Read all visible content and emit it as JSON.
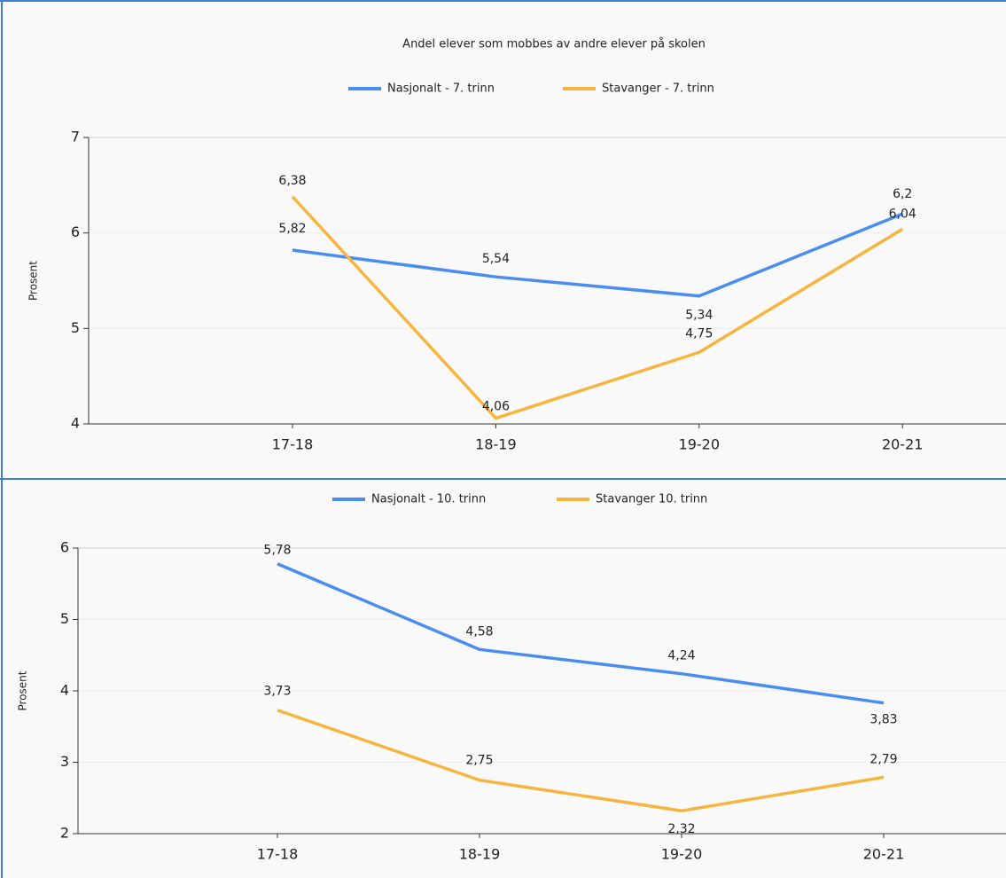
{
  "chart_data": [
    {
      "type": "line",
      "title": "Andel elever som mobbes av andre elever på skolen",
      "y_label": "Prosent",
      "categories": [
        "17-18",
        "18-19",
        "19-20",
        "20-21"
      ],
      "series": [
        {
          "name": "Nasjonalt - 7. trinn",
          "color": "#4a8df0",
          "values": [
            5.82,
            5.54,
            5.34,
            6.2
          ],
          "value_labels": [
            "5,82",
            "5,54",
            "5,34",
            "6,2"
          ]
        },
        {
          "name": "Stavanger - 7. trinn",
          "color": "#f7b540",
          "values": [
            6.38,
            4.06,
            4.75,
            6.04
          ],
          "value_labels": [
            "6,38",
            "4,06",
            "4,75",
            "6,04"
          ]
        }
      ],
      "ylim": [
        4,
        7
      ],
      "yticks": [
        4,
        5,
        6,
        7
      ],
      "grid": true
    },
    {
      "type": "line",
      "y_label": "Prosent",
      "categories": [
        "17-18",
        "18-19",
        "19-20",
        "20-21"
      ],
      "series": [
        {
          "name": "Nasjonalt - 10. trinn",
          "color": "#4a8df0",
          "values": [
            5.78,
            4.58,
            4.24,
            3.83
          ],
          "value_labels": [
            "5,78",
            "4,58",
            "4,24",
            "3,83"
          ]
        },
        {
          "name": "Stavanger 10. trinn",
          "color": "#f7b540",
          "values": [
            3.73,
            2.75,
            2.32,
            2.79
          ],
          "value_labels": [
            "3,73",
            "2,75",
            "2,32",
            "2,79"
          ]
        }
      ],
      "ylim": [
        2,
        6
      ],
      "yticks": [
        2,
        3,
        4,
        5,
        6
      ],
      "grid": true
    }
  ]
}
